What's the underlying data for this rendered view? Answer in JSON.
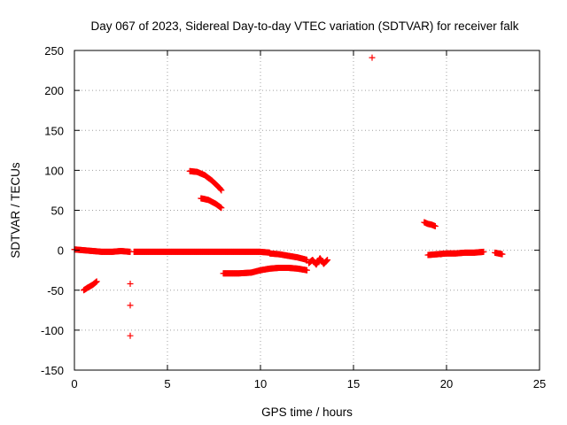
{
  "chart_data": {
    "type": "scatter",
    "title": "Day 067 of 2023, Sidereal Day-to-day VTEC variation (SDTVAR) for receiver falk",
    "xlabel": "GPS time / hours",
    "ylabel": "SDTVAR / TECUs",
    "xlim": [
      0,
      25
    ],
    "ylim": [
      -150,
      250
    ],
    "xticks": [
      0,
      5,
      10,
      15,
      20,
      25
    ],
    "yticks": [
      250,
      200,
      150,
      100,
      50,
      0,
      -50,
      -100,
      -150
    ],
    "grid": true,
    "marker": "plus",
    "color": "#ff0000",
    "segments": [
      {
        "x": [
          0.0,
          0.5,
          1.0,
          1.5,
          2.0,
          2.5,
          3.0
        ],
        "y": [
          1,
          0,
          -1,
          -2,
          -2,
          -1,
          -2
        ]
      },
      {
        "x": [
          3.2,
          4.0,
          5.0,
          6.0,
          7.0,
          8.0,
          9.0,
          10.0,
          10.5
        ],
        "y": [
          -2,
          -2,
          -2,
          -2,
          -2,
          -2,
          -2,
          -2,
          -3
        ]
      },
      {
        "x": [
          10.5,
          11.0,
          11.5,
          12.0,
          12.5
        ],
        "y": [
          -4,
          -5,
          -7,
          -9,
          -12
        ]
      },
      {
        "x": [
          0.5,
          0.7,
          1.0,
          1.2
        ],
        "y": [
          -50,
          -47,
          -43,
          -39
        ]
      },
      {
        "x": [
          6.2,
          6.6,
          7.0,
          7.4,
          7.8,
          7.9
        ],
        "y": [
          99,
          98,
          94,
          87,
          78,
          75
        ]
      },
      {
        "x": [
          6.8,
          7.2,
          7.6,
          7.9
        ],
        "y": [
          65,
          63,
          58,
          53
        ]
      },
      {
        "x": [
          8.0,
          8.8,
          9.5,
          10.0,
          10.5,
          11.0,
          11.5,
          12.0,
          12.5
        ],
        "y": [
          -29,
          -29,
          -28,
          -25,
          -23,
          -22,
          -22,
          -23,
          -25
        ]
      },
      {
        "x": [
          12.6,
          12.8,
          13.0,
          13.2,
          13.4,
          13.6
        ],
        "y": [
          -16,
          -12,
          -18,
          -10,
          -17,
          -12
        ]
      },
      {
        "x": [
          18.8,
          19.0,
          19.2,
          19.4
        ],
        "y": [
          35,
          33,
          32,
          30
        ]
      },
      {
        "x": [
          19.0,
          19.5,
          20.0,
          20.5,
          21.0,
          21.5,
          22.0
        ],
        "y": [
          -6,
          -5,
          -4,
          -4,
          -3,
          -3,
          -2
        ]
      },
      {
        "x": [
          22.6,
          22.8,
          23.0
        ],
        "y": [
          -3,
          -4,
          -5
        ]
      }
    ],
    "points": [
      {
        "x": 3.0,
        "y": -42
      },
      {
        "x": 3.0,
        "y": -69
      },
      {
        "x": 3.0,
        "y": -107
      },
      {
        "x": 16.0,
        "y": 241
      },
      {
        "x": 19.7,
        "y": -5
      }
    ]
  }
}
